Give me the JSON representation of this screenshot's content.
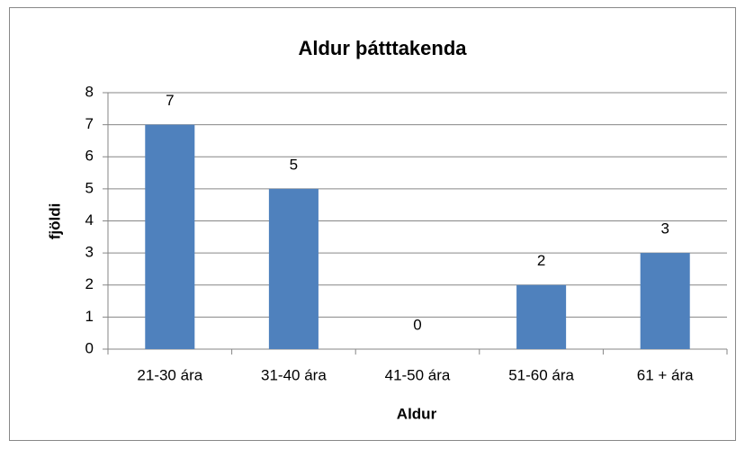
{
  "chart_data": {
    "type": "bar",
    "title": "Aldur þátttakenda",
    "x_label": "Aldur",
    "y_label": "fjöldi",
    "categories": [
      "21-30 ára",
      "31-40 ára",
      "41-50 ára",
      "51-60 ára",
      "61 + ára"
    ],
    "values": [
      7,
      5,
      0,
      2,
      3
    ],
    "color": "#4f81bd",
    "ylim": [
      0,
      8
    ],
    "yticks": [
      0,
      1,
      2,
      3,
      4,
      5,
      6,
      7,
      8
    ],
    "grid": true
  }
}
